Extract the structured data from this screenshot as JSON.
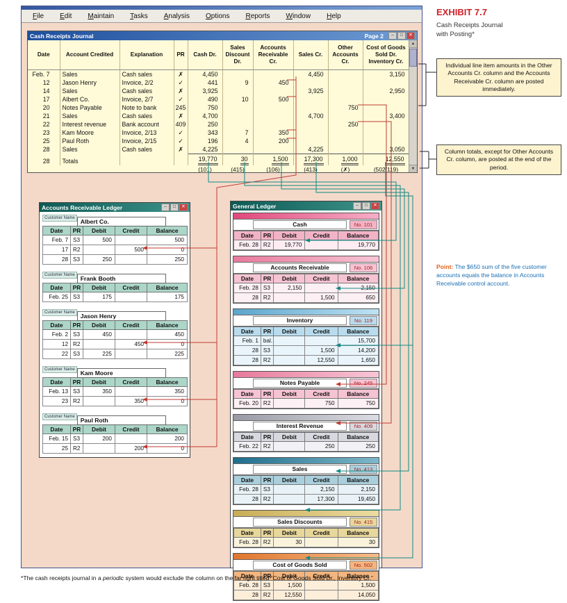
{
  "menu": [
    "File",
    "Edit",
    "Maintain",
    "Tasks",
    "Analysis",
    "Options",
    "Reports",
    "Window",
    "Help"
  ],
  "icons": {
    "minimize": "–",
    "maximize": "□",
    "close": "✕",
    "scroll_up": "▲",
    "scroll_down": "▼"
  },
  "colors": {
    "exhibit_red": "#cc2229",
    "point_label_orange": "#e2621b",
    "point_text_blue": "#1a6fb5",
    "arrow_red": "#c23a32",
    "arrow_teal": "#0e8a84",
    "callout_bg": "#fdf3cf",
    "journal_paper": "#fffbd8",
    "client_pink": "#f4d9c9"
  },
  "exhibit": {
    "title": "EXHIBIT 7.7",
    "subtitle": "Cash Receipts Journal\nwith Posting*"
  },
  "journal": {
    "title": "Cash Receipts Journal",
    "page": "Page 2",
    "headers": [
      "Date",
      "Account Credited",
      "Explanation",
      "PR",
      "Cash Dr.",
      "Sales\nDiscount\nDr.",
      "Accounts\nReceivable\nCr.",
      "Sales Cr.",
      "Other\nAccounts\nCr.",
      "Cost of Goods\nSold Dr.\nInventory Cr."
    ],
    "rows": [
      [
        "Feb. 7",
        "Sales",
        "Cash sales",
        "✗",
        "4,450",
        "",
        "",
        "4,450",
        "",
        "3,150"
      ],
      [
        "12",
        "Jason Henry",
        "Invoice, 2/2",
        "✓",
        "441",
        "9",
        "450",
        "",
        "",
        ""
      ],
      [
        "14",
        "Sales",
        "Cash sales",
        "✗",
        "3,925",
        "",
        "",
        "3,925",
        "",
        "2,950"
      ],
      [
        "17",
        "Albert Co.",
        "Invoice, 2/7",
        "✓",
        "490",
        "10",
        "500",
        "",
        "",
        ""
      ],
      [
        "20",
        "Notes Payable",
        "Note to bank",
        "245",
        "750",
        "",
        "",
        "",
        "750",
        ""
      ],
      [
        "21",
        "Sales",
        "Cash sales",
        "✗",
        "4,700",
        "",
        "",
        "4,700",
        "",
        "3,400"
      ],
      [
        "22",
        "Interest revenue",
        "Bank account",
        "409",
        "250",
        "",
        "",
        "",
        "250",
        ""
      ],
      [
        "23",
        "Kam Moore",
        "Invoice, 2/13",
        "✓",
        "343",
        "7",
        "350",
        "",
        "",
        ""
      ],
      [
        "25",
        "Paul Roth",
        "Invoice, 2/15",
        "✓",
        "196",
        "4",
        "200",
        "",
        "",
        ""
      ],
      [
        "28",
        "Sales",
        "Cash sales",
        "✗",
        "4,225",
        "",
        "",
        "4,225",
        "",
        "3,050"
      ],
      [
        "28",
        "Totals",
        "",
        "",
        "19,770",
        "30",
        "1,500",
        "17,300",
        "1,000",
        "12,550"
      ]
    ],
    "codes": [
      "",
      "",
      "",
      "",
      "(101)",
      "(415)",
      "(106)",
      "(413)",
      "(✗)",
      "(502/119)"
    ]
  },
  "callouts": [
    {
      "text": "Individual line item amounts in the Other Accounts Cr. column and the Accounts Receivable Cr. column are posted immediately."
    },
    {
      "text": "Column totals, except for Other Accounts Cr. column, are posted at the end of the period."
    }
  ],
  "ar_ledger": {
    "title": "Accounts Receivable Ledger",
    "field_label": "Customer Name",
    "headers": [
      "Date",
      "PR",
      "Debit",
      "Credit",
      "Balance"
    ],
    "accounts": [
      {
        "name": "Albert Co.",
        "rows": [
          [
            "Feb. 7",
            "S3",
            "500",
            "",
            "500"
          ],
          [
            "17",
            "R2",
            "",
            "500",
            "0"
          ],
          [
            "28",
            "S3",
            "250",
            "",
            "250"
          ]
        ]
      },
      {
        "name": "Frank Booth",
        "rows": [
          [
            "Feb. 25",
            "S3",
            "175",
            "",
            "175"
          ]
        ]
      },
      {
        "name": "Jason Henry",
        "rows": [
          [
            "Feb. 2",
            "S3",
            "450",
            "",
            "450"
          ],
          [
            "12",
            "R2",
            "",
            "450",
            "0"
          ],
          [
            "22",
            "S3",
            "225",
            "",
            "225"
          ]
        ]
      },
      {
        "name": "Kam Moore",
        "rows": [
          [
            "Feb. 13",
            "S3",
            "350",
            "",
            "350"
          ],
          [
            "23",
            "R2",
            "",
            "350",
            "0"
          ]
        ]
      },
      {
        "name": "Paul Roth",
        "rows": [
          [
            "Feb. 15",
            "S3",
            "200",
            "",
            "200"
          ],
          [
            "25",
            "R2",
            "",
            "200",
            "0"
          ]
        ]
      }
    ]
  },
  "general_ledger": {
    "title": "General Ledger",
    "headers": [
      "Date",
      "PR",
      "Debit",
      "Credit",
      "Balance"
    ],
    "accounts": [
      {
        "name": "Cash",
        "no": "No. 101",
        "theme": "pink",
        "rows": [
          [
            "Feb. 28",
            "R2",
            "19,770",
            "",
            "19,770"
          ]
        ]
      },
      {
        "name": "Accounts Receivable",
        "no": "No. 106",
        "theme": "rose",
        "rows": [
          [
            "Feb. 28",
            "S3",
            "2,150",
            "",
            "2,150"
          ],
          [
            "28",
            "R2",
            "",
            "1,500",
            "650"
          ]
        ]
      },
      {
        "name": "Inventory",
        "no": "No. 119",
        "theme": "blue",
        "rows": [
          [
            "Feb. 1",
            "bal.",
            "",
            "",
            "15,700"
          ],
          [
            "28",
            "S3",
            "",
            "1,500",
            "14,200"
          ],
          [
            "28",
            "R2",
            "",
            "12,550",
            "1,650"
          ]
        ]
      },
      {
        "name": "Notes Payable",
        "no": "No. 245",
        "theme": "rose2",
        "rows": [
          [
            "Feb. 20",
            "R2",
            "",
            "750",
            "750"
          ]
        ]
      },
      {
        "name": "Interest Revenue",
        "no": "No. 409",
        "theme": "gray",
        "rows": [
          [
            "Feb. 22",
            "R2",
            "",
            "250",
            "250"
          ]
        ]
      },
      {
        "name": "Sales",
        "no": "No. 413",
        "theme": "teal",
        "rows": [
          [
            "Feb. 28",
            "S3",
            "",
            "2,150",
            "2,150"
          ],
          [
            "28",
            "R2",
            "",
            "17,300",
            "19,450"
          ]
        ]
      },
      {
        "name": "Sales Discounts",
        "no": "No. 415",
        "theme": "tan",
        "rows": [
          [
            "Feb. 28",
            "R2",
            "30",
            "",
            "30"
          ]
        ]
      },
      {
        "name": "Cost of Goods Sold",
        "no": "No. 502",
        "theme": "orange",
        "rows": [
          [
            "Feb. 28",
            "S3",
            "1,500",
            "",
            "1,500"
          ],
          [
            "28",
            "R2",
            "12,550",
            "",
            "14,050"
          ]
        ]
      }
    ]
  },
  "point_note": {
    "label": "Point:",
    "text": "The $650 sum of the five customer accounts equals the balance in Accounts Receivable control account."
  },
  "footnote": {
    "pre": "*The cash receipts journal in a ",
    "italic": "periodic",
    "post": " system would exclude the column on the far right titled “Cost of Goods Sold Dr., Inventory Cr.”"
  }
}
